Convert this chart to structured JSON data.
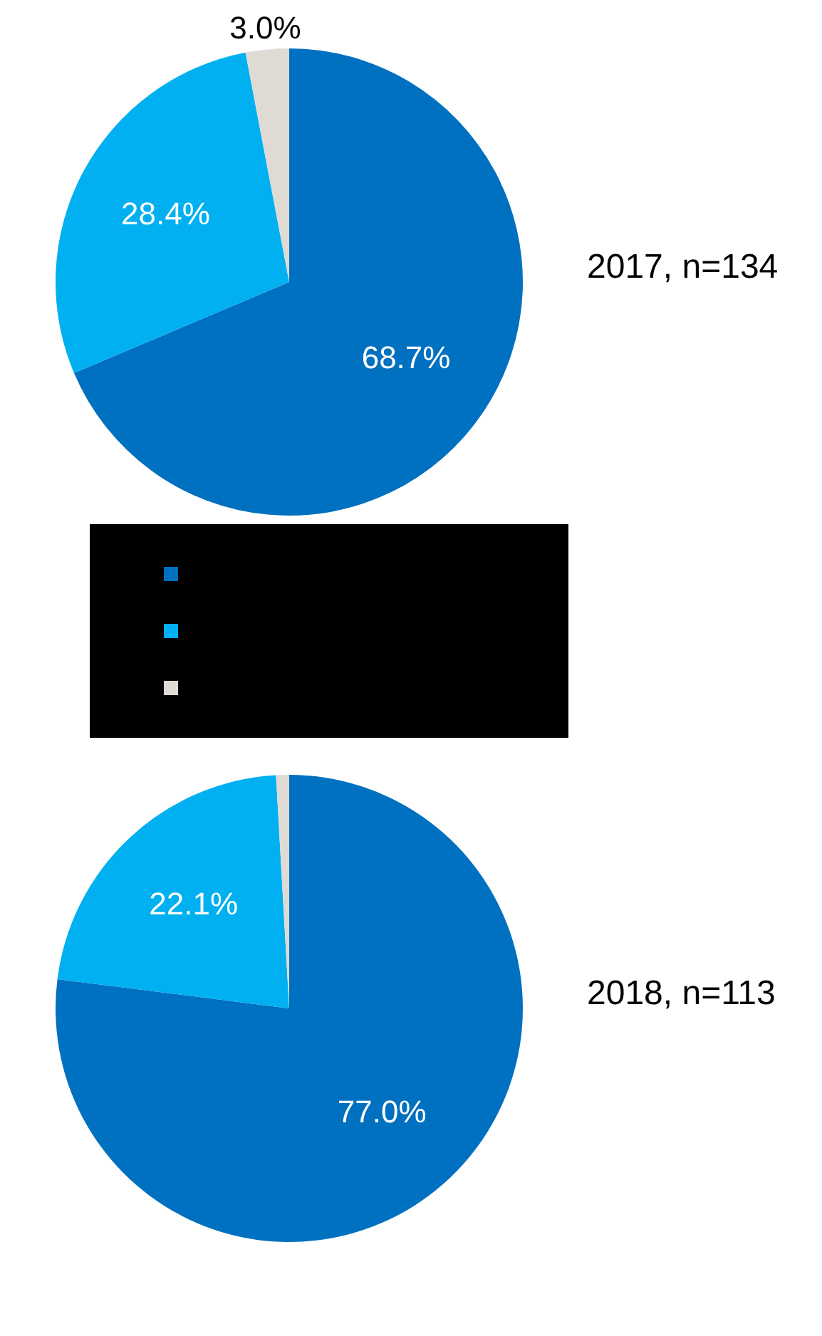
{
  "chart_data": [
    {
      "type": "pie",
      "title": "2017, n=134",
      "categories": [
        null,
        null,
        null
      ],
      "values": [
        68.7,
        28.4,
        3.0
      ],
      "colors": [
        "#0070c0",
        "#00b0f0",
        "#e0dad5"
      ],
      "value_labels": [
        "68.7%",
        "28.4%",
        "3.0%"
      ]
    },
    {
      "type": "pie",
      "title": "2018, n=113",
      "categories": [
        null,
        null,
        null
      ],
      "values": [
        77.0,
        22.1,
        0.9
      ],
      "colors": [
        "#0070c0",
        "#00b0f0",
        "#e0dad5"
      ],
      "value_labels": [
        "77.0%",
        "22.1%",
        null
      ]
    }
  ]
}
